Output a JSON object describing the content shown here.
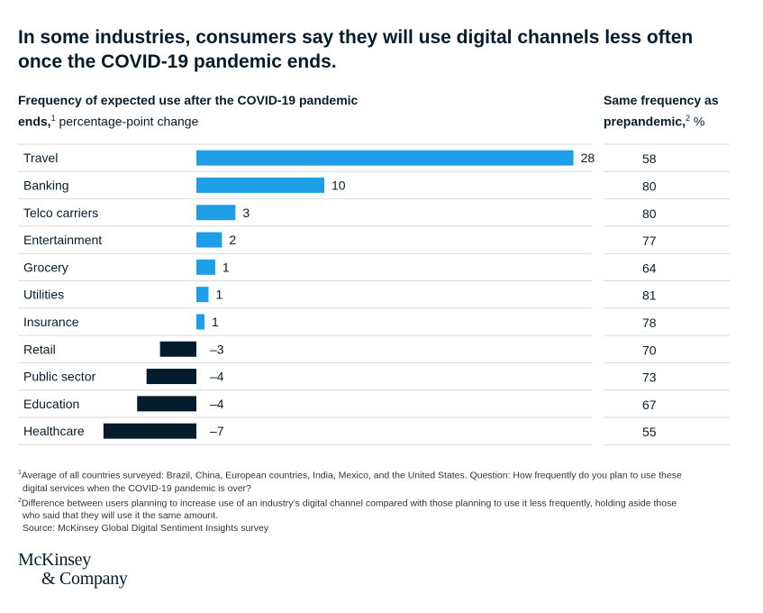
{
  "title": "In some industries, consumers say they will use digital channels less often once the COVID-19 pandemic ends.",
  "left_header": {
    "bold_text": "Frequency of expected use after the COVID-19 pandemic ends,",
    "footnote_marker": "1",
    "normal_text": " percentage-point change"
  },
  "right_header": {
    "bold_text": "Same frequency as prepandemic,",
    "footnote_marker": "2",
    "normal_text": " %"
  },
  "colors": {
    "positive": "#1f9ee8",
    "negative": "#051c2c",
    "gridline": "#d9d9d9",
    "text": "#051c2c"
  },
  "chart_data": {
    "type": "bar",
    "orientation": "horizontal",
    "categories": [
      "Travel",
      "Banking",
      "Telco carriers",
      "Entertainment",
      "Grocery",
      "Utilities",
      "Insurance",
      "Retail",
      "Public sector",
      "Education",
      "Healthcare"
    ],
    "series": [
      {
        "name": "Frequency of expected use after the COVID-19 pandemic ends, percentage-point change",
        "values": [
          28,
          10,
          3,
          2,
          1,
          1,
          1,
          -3,
          -4,
          -4,
          -7
        ],
        "display_values": [
          28,
          9.5,
          2.9,
          1.9,
          1.4,
          0.9,
          0.6,
          -2.7,
          -3.7,
          -4.4,
          -6.9
        ],
        "labels": [
          "28",
          "10",
          "3",
          "2",
          "1",
          "1",
          "1",
          "–3",
          "–4",
          "–4",
          "–7"
        ]
      },
      {
        "name": "Same frequency as prepandemic, %",
        "values": [
          58,
          80,
          80,
          77,
          64,
          81,
          78,
          70,
          73,
          67,
          55
        ]
      }
    ],
    "xlim": [
      -7,
      28
    ]
  },
  "footnotes": [
    {
      "marker": "1",
      "text": "Average of all countries surveyed: Brazil, China, European countries, India, Mexico, and the United States. Question: How frequently do you plan to use these"
    },
    {
      "marker": "",
      "text": "digital services when the COVID-19 pandemic is over?"
    },
    {
      "marker": "2",
      "text": "Difference between users planning to increase use of an industry’s digital channel compared with those planning to use it less frequently, holding aside those"
    },
    {
      "marker": "",
      "text": "who said that they will use it the same amount."
    }
  ],
  "source": "Source: McKinsey Global Digital Sentiment Insights survey",
  "logo": {
    "line1": "McKinsey",
    "line2": "& Company"
  }
}
